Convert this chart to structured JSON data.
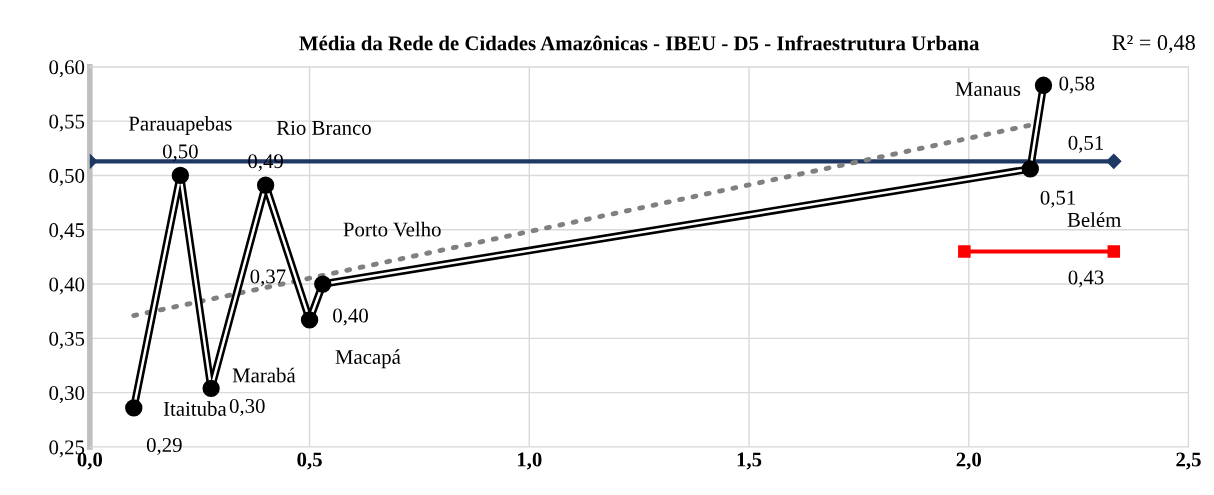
{
  "chart_data": {
    "type": "line",
    "title": "Média da Rede de Cidades Amazônicas - IBEU - D5 - Infraestrutura Urbana",
    "series": [
      {
        "color": "#000000",
        "marker": "circle",
        "x": [
          0.1,
          0.206,
          0.276,
          0.4,
          0.5,
          0.53,
          2.14,
          2.17
        ],
        "values": [
          0.286,
          0.5,
          0.304,
          0.491,
          0.367,
          0.4,
          0.506,
          0.583
        ],
        "value_labels": [
          "0,29",
          "0,50",
          "0,30",
          "0,49",
          "0,37",
          "0,40",
          "0,51",
          "0,58"
        ]
      },
      {
        "color": "#1f3864",
        "marker": "diamond",
        "x": [
          0.0,
          2.33
        ],
        "values": [
          0.513,
          0.513
        ],
        "value_labels": [
          null,
          "0,51"
        ]
      },
      {
        "color": "#ff0000",
        "marker": "square",
        "x": [
          1.99,
          2.33
        ],
        "values": [
          0.43,
          0.43
        ],
        "value_labels": [
          null,
          "0,43"
        ]
      },
      {
        "color": "#808080",
        "line_style": "dotted",
        "x": [
          0.1,
          2.16
        ],
        "values": [
          0.371,
          0.548
        ]
      }
    ],
    "annotations": [
      {
        "text": "Itaituba",
        "x": 0.1,
        "y": 0.286
      },
      {
        "text": "Parauapebas",
        "x": 0.206,
        "y": 0.5
      },
      {
        "text": "Marabá",
        "x": 0.276,
        "y": 0.304
      },
      {
        "text": "Rio Branco",
        "x": 0.4,
        "y": 0.491
      },
      {
        "text": "Macapá",
        "x": 0.5,
        "y": 0.367
      },
      {
        "text": "Porto Velho",
        "x": 0.53,
        "y": 0.4
      },
      {
        "text": "Belém",
        "x": 2.14,
        "y": 0.506
      },
      {
        "text": "Manaus",
        "x": 2.17,
        "y": 0.583
      },
      "R² = 0,48"
    ],
    "xlim": [
      0,
      2.5
    ],
    "xticks": [
      {
        "value": 0,
        "label": "0,0"
      },
      {
        "value": 0.5,
        "label": "0,5"
      },
      {
        "value": 1.0,
        "label": "1,0"
      },
      {
        "value": 1.5,
        "label": "1,5"
      },
      {
        "value": 2.0,
        "label": "2,0"
      },
      {
        "value": 2.5,
        "label": "2,5"
      }
    ],
    "ylim": [
      0.25,
      0.6
    ],
    "yticks": [
      {
        "value": 0.25,
        "label": "0,25"
      },
      {
        "value": 0.3,
        "label": "0,30"
      },
      {
        "value": 0.35,
        "label": "0,35"
      },
      {
        "value": 0.4,
        "label": "0,40"
      },
      {
        "value": 0.45,
        "label": "0,45"
      },
      {
        "value": 0.5,
        "label": "0,50"
      },
      {
        "value": 0.55,
        "label": "0,55"
      },
      {
        "value": 0.6,
        "label": "0,60"
      }
    ],
    "grid": true,
    "legend": false
  }
}
